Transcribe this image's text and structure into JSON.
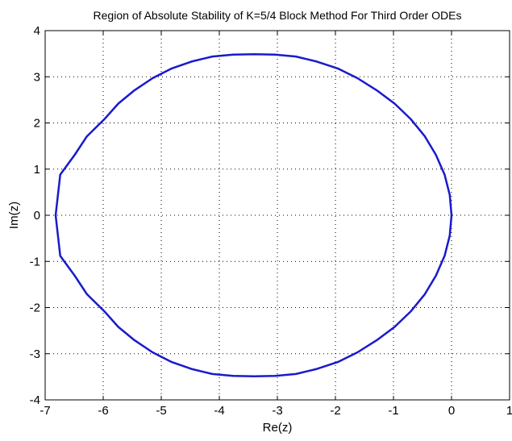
{
  "chart_data": {
    "type": "line",
    "title": "Region of Absolute Stability of K=5/4 Block Method For Third Order ODEs",
    "xlabel": "Re(z)",
    "ylabel": "Im(z)",
    "xlim": [
      -7,
      1
    ],
    "ylim": [
      -4,
      4
    ],
    "xticks": [
      -7,
      -6,
      -5,
      -4,
      -3,
      -2,
      -1,
      0,
      1
    ],
    "yticks": [
      -4,
      -3,
      -2,
      -1,
      0,
      1,
      2,
      3,
      4
    ],
    "xtick_labels": [
      "-7",
      "-6",
      "-5",
      "-4",
      "-3",
      "-2",
      "-1",
      "0",
      "1"
    ],
    "ytick_labels": [
      "-4",
      "-3",
      "-2",
      "-1",
      "0",
      "1",
      "2",
      "3",
      "4"
    ],
    "grid": true,
    "grid_style": "dotted",
    "legend": "none",
    "series": [
      {
        "color": "#1a1acc",
        "x": [
          0,
          -0.03,
          -0.12,
          -0.27,
          -0.46,
          -0.7,
          -0.98,
          -1.29,
          -1.62,
          -1.96,
          -2.32,
          -2.68,
          -3.04,
          -3.4,
          -3.76,
          -4.12,
          -4.48,
          -4.82,
          -5.15,
          -5.46,
          -5.74,
          -5.98,
          -6.28,
          -6.49,
          -6.74,
          -6.82,
          -6.74,
          -6.49,
          -6.28,
          -5.98,
          -5.74,
          -5.46,
          -5.15,
          -4.82,
          -4.48,
          -4.12,
          -3.76,
          -3.4,
          -3.04,
          -2.68,
          -2.32,
          -1.96,
          -1.62,
          -1.29,
          -0.98,
          -0.7,
          -0.46,
          -0.27,
          -0.12,
          -0.03,
          0
        ],
        "y": [
          0,
          0.44,
          0.88,
          1.31,
          1.71,
          2.08,
          2.42,
          2.71,
          2.97,
          3.18,
          3.33,
          3.44,
          3.48,
          3.49,
          3.48,
          3.44,
          3.33,
          3.18,
          2.97,
          2.71,
          2.42,
          2.08,
          1.71,
          1.31,
          0.88,
          0,
          -0.88,
          -1.31,
          -1.71,
          -2.08,
          -2.42,
          -2.71,
          -2.97,
          -3.18,
          -3.33,
          -3.44,
          -3.48,
          -3.49,
          -3.48,
          -3.44,
          -3.33,
          -3.18,
          -2.97,
          -2.71,
          -2.42,
          -2.08,
          -1.71,
          -1.31,
          -0.88,
          -0.44,
          0
        ]
      }
    ]
  }
}
